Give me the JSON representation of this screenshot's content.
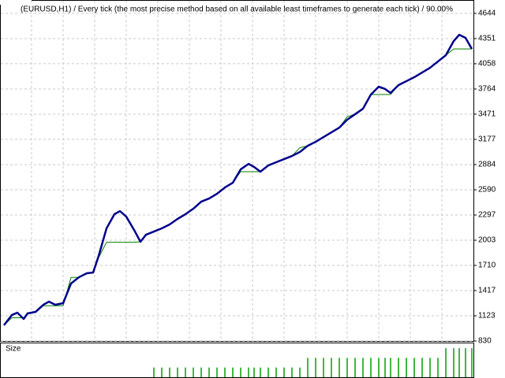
{
  "chart_data": {
    "type": "line",
    "title": "(EURUSD,H1) / Every tick (the most precise method based on all available least timeframes to generate each tick) / 90.00%",
    "x": [
      0,
      10,
      17,
      25,
      30,
      40,
      50,
      57,
      65,
      75,
      85,
      95,
      105,
      113,
      120,
      130,
      140,
      147,
      155,
      165,
      173,
      180,
      190,
      200,
      210,
      220,
      230,
      240,
      250,
      260,
      270,
      280,
      290,
      300,
      310,
      317,
      325,
      335,
      345,
      355,
      365,
      375,
      385,
      395,
      405,
      415,
      425,
      435,
      445,
      455,
      465,
      475,
      483,
      490,
      500,
      510,
      520,
      530,
      540,
      550,
      560,
      570,
      577,
      585,
      593
    ],
    "xlim": [
      0,
      595
    ],
    "series": [
      {
        "color": "#008000",
        "values": [
          1013,
          1100,
          1100,
          1100,
          1160,
          1160,
          1240,
          1240,
          1240,
          1240,
          1570,
          1570,
          1620,
          1620,
          1800,
          1980,
          1980,
          1980,
          1980,
          1980,
          1985,
          2067,
          2104,
          2141,
          2187,
          2251,
          2306,
          2370,
          2452,
          2489,
          2544,
          2617,
          2672,
          2801,
          2801,
          2801,
          2801,
          2874,
          2911,
          2947,
          2984,
          3080,
          3103,
          3149,
          3204,
          3259,
          3314,
          3440,
          3470,
          3534,
          3700,
          3700,
          3700,
          3700,
          3809,
          3855,
          3901,
          3956,
          4011,
          4084,
          4157,
          4230,
          4230,
          4230,
          4230
        ]
      },
      {
        "color": "#00008b",
        "values": [
          1013,
          1132,
          1160,
          1087,
          1151,
          1169,
          1252,
          1288,
          1252,
          1270,
          1499,
          1572,
          1618,
          1627,
          1820,
          2141,
          2306,
          2342,
          2278,
          2122,
          1985,
          2067,
          2104,
          2141,
          2187,
          2251,
          2306,
          2370,
          2452,
          2489,
          2544,
          2617,
          2672,
          2828,
          2892,
          2856,
          2801,
          2874,
          2911,
          2947,
          2984,
          3030,
          3103,
          3149,
          3204,
          3259,
          3314,
          3406,
          3470,
          3534,
          3699,
          3791,
          3764,
          3718,
          3809,
          3855,
          3901,
          3956,
          4011,
          4084,
          4157,
          4322,
          4395,
          4359,
          4230
        ]
      }
    ],
    "ylim": [
      830,
      4644
    ],
    "yticks": [
      830,
      1123,
      1417,
      1710,
      2003,
      2297,
      2590,
      2884,
      3177,
      3471,
      3764,
      4058,
      4351,
      4644
    ],
    "grid": true,
    "size_panel": {
      "label": "Size",
      "color": "#00a000",
      "ylim": [
        0,
        0.35
      ],
      "values": [
        0,
        0,
        0,
        0,
        0,
        0,
        0,
        0,
        0,
        0,
        0,
        0,
        0,
        0,
        0,
        0,
        0,
        0,
        0,
        0,
        0,
        0,
        0.1,
        0.1,
        0.1,
        0.1,
        0.1,
        0.1,
        0.1,
        0.1,
        0.1,
        0.1,
        0.1,
        0.1,
        0.1,
        0.1,
        0.1,
        0.1,
        0.1,
        0.1,
        0.1,
        0.1,
        0.2,
        0.2,
        0.2,
        0.2,
        0.2,
        0.2,
        0.2,
        0.2,
        0.2,
        0.2,
        0.2,
        0.2,
        0.2,
        0.2,
        0.2,
        0.2,
        0.2,
        0.2,
        0.3,
        0.3,
        0.3,
        0.3,
        0.3
      ]
    }
  }
}
